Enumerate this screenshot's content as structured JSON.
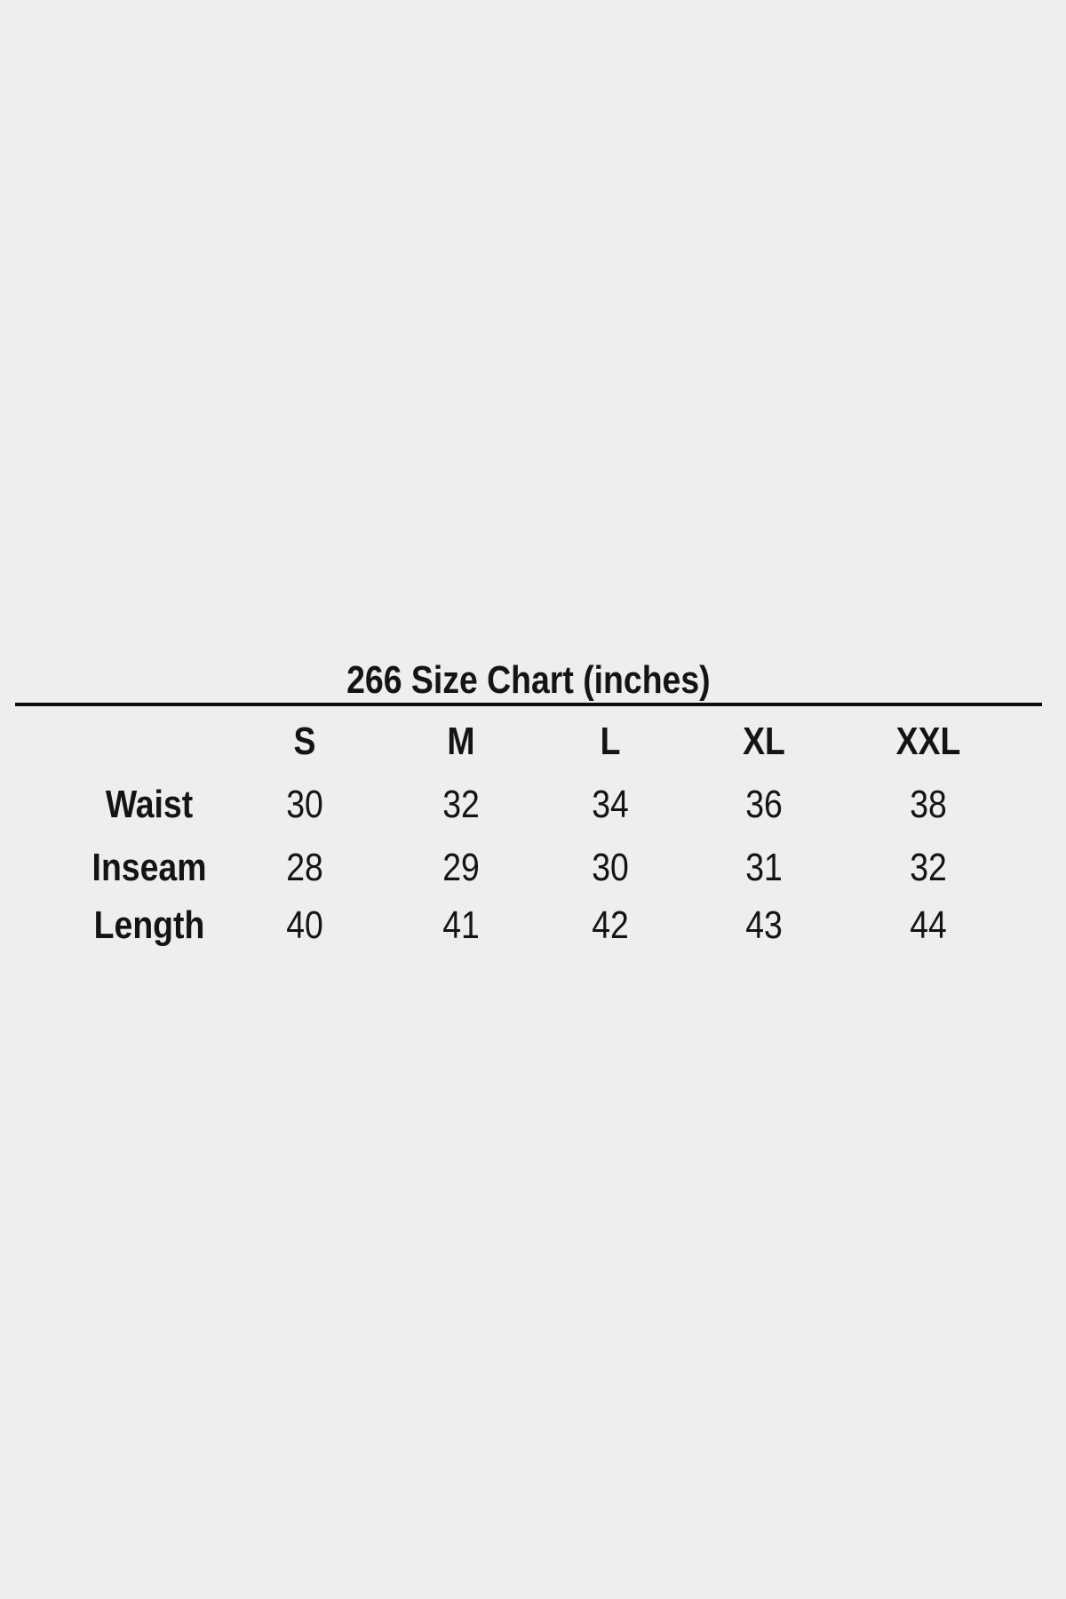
{
  "page": {
    "background_color": "#eeeeee",
    "text_color": "#141414",
    "rule_color": "#0c0c0c"
  },
  "chart_data": {
    "type": "table",
    "title": "266 Size Chart (inches)",
    "units": "inches",
    "columns": [
      "S",
      "M",
      "L",
      "XL",
      "XXL"
    ],
    "rows": [
      {
        "label": "Waist",
        "values": [
          30,
          32,
          34,
          36,
          38
        ]
      },
      {
        "label": "Inseam",
        "values": [
          28,
          29,
          30,
          31,
          32
        ]
      },
      {
        "label": "Length",
        "values": [
          40,
          41,
          42,
          43,
          44
        ]
      }
    ],
    "layout": {
      "grid": "single horizontal rule under title",
      "header_position": "top",
      "label_column_position": "left"
    }
  }
}
